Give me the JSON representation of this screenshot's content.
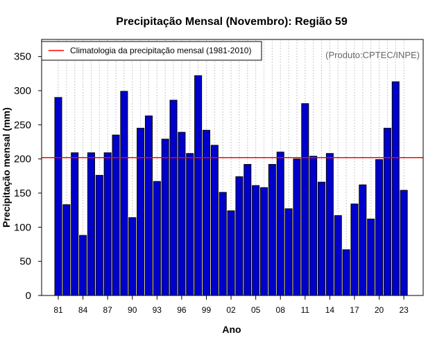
{
  "chart_data": {
    "type": "bar",
    "title": "Precipitação Mensal (Novembro): Região 59",
    "xlabel": "Ano",
    "ylabel": "Precipitação mensal (mm)",
    "ylim": [
      0,
      375
    ],
    "yticks": [
      0,
      50,
      100,
      150,
      200,
      250,
      300,
      350
    ],
    "xtick_labels": [
      "81",
      "84",
      "87",
      "90",
      "93",
      "96",
      "99",
      "02",
      "05",
      "08",
      "11",
      "14",
      "17",
      "20",
      "23"
    ],
    "categories": [
      "1981",
      "1982",
      "1983",
      "1984",
      "1985",
      "1986",
      "1987",
      "1988",
      "1989",
      "1990",
      "1991",
      "1992",
      "1993",
      "1994",
      "1995",
      "1996",
      "1997",
      "1998",
      "1999",
      "2000",
      "2001",
      "2002",
      "2003",
      "2004",
      "2005",
      "2006",
      "2007",
      "2008",
      "2009",
      "2010",
      "2011",
      "2012",
      "2013",
      "2014",
      "2015",
      "2016",
      "2017",
      "2018",
      "2019",
      "2020",
      "2021",
      "2022",
      "2023"
    ],
    "values": [
      290,
      133,
      209,
      88,
      209,
      176,
      209,
      235,
      299,
      114,
      245,
      263,
      167,
      229,
      286,
      239,
      208,
      322,
      242,
      220,
      151,
      124,
      174,
      192,
      161,
      158,
      192,
      210,
      127,
      200,
      281,
      204,
      166,
      208,
      117,
      67,
      134,
      162,
      112,
      199,
      245,
      313,
      154
    ],
    "climatology": {
      "label": "Climatologia da precipitação mensal (1981-2010)",
      "value": 202,
      "color": "#ff0000"
    },
    "bar_color": "#0000cc",
    "credit": "(Produto:CPTEC/INPE)",
    "grid": "vertical dotted",
    "legend_position": "top-left"
  }
}
